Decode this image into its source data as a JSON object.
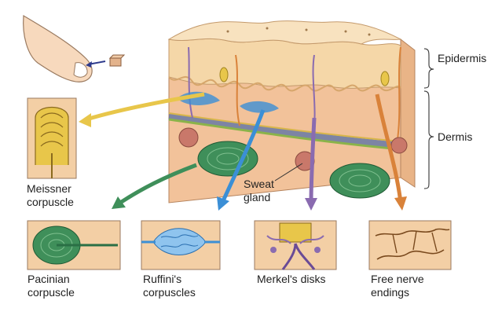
{
  "labels": {
    "epidermis": "Epidermis",
    "dermis": "Dermis",
    "sweat_gland": "Sweat\ngland",
    "meissner": "Meissner\ncorpuscle",
    "pacinian": "Pacinian\ncorpuscle",
    "ruffini": "Ruffini's\ncorpuscles",
    "merkel": "Merkel's disks",
    "free_nerve": "Free nerve\nendings"
  },
  "colors": {
    "skin": "#f2c29a",
    "epidermis": "#f5d7a8",
    "pacinian_green": "#3f8f5a",
    "ruffini_blue": "#3b8fd6",
    "merkel_purple": "#8a6bb0",
    "free_nerve_orange": "#d9823a",
    "meissner_yellow": "#e8c64a",
    "inset_bg": "#f3cfa5"
  }
}
